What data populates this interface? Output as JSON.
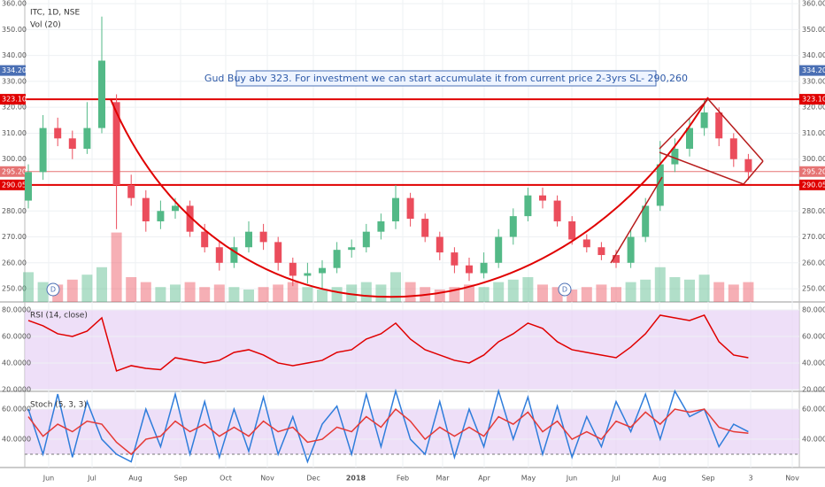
{
  "chart_data": [
    {
      "type": "candlestick",
      "title": "ITC, 1D, NSE",
      "open": [
        284,
        295,
        312,
        308,
        304,
        312,
        322,
        290,
        285,
        276,
        280,
        282,
        272,
        266,
        260,
        266,
        272,
        268,
        260,
        255,
        256,
        258,
        265,
        266,
        272,
        276,
        285,
        277,
        270,
        264,
        259,
        256,
        260,
        270,
        278,
        286,
        284,
        276,
        269,
        266,
        263,
        260,
        270,
        282,
        298,
        304,
        312,
        318,
        308,
        300
      ],
      "high": [
        298,
        317,
        316,
        311,
        322,
        355,
        325,
        294,
        288,
        284,
        285,
        284,
        275,
        268,
        270,
        276,
        275,
        270,
        262,
        260,
        261,
        268,
        269,
        275,
        279,
        290,
        287,
        279,
        272,
        266,
        262,
        264,
        273,
        281,
        289,
        289,
        286,
        278,
        271,
        268,
        265,
        273,
        285,
        307,
        308,
        316,
        323,
        320,
        310,
        302
      ],
      "low": [
        281,
        292,
        305,
        300,
        302,
        310,
        273,
        282,
        272,
        273,
        277,
        270,
        264,
        257,
        258,
        264,
        265,
        257,
        251,
        252,
        250,
        256,
        262,
        264,
        269,
        273,
        274,
        268,
        261,
        256,
        253,
        254,
        258,
        267,
        276,
        281,
        274,
        267,
        264,
        261,
        258,
        258,
        268,
        280,
        295,
        301,
        309,
        305,
        297,
        292
      ],
      "close": [
        295,
        312,
        308,
        304,
        312,
        338,
        290,
        285,
        276,
        280,
        282,
        272,
        266,
        260,
        266,
        272,
        268,
        260,
        255,
        256,
        258,
        265,
        266,
        272,
        276,
        285,
        277,
        270,
        264,
        259,
        256,
        260,
        270,
        278,
        286,
        284,
        276,
        269,
        266,
        263,
        260,
        270,
        282,
        298,
        304,
        312,
        318,
        308,
        300,
        295
      ],
      "up_color": "#53b987",
      "down_color": "#eb4d5c",
      "volume_title": "Vol (20)",
      "volume": [
        12,
        8,
        7,
        9,
        11,
        14,
        28,
        10,
        8,
        6,
        7,
        8,
        6,
        7,
        6,
        5,
        6,
        7,
        8,
        6,
        5,
        6,
        7,
        8,
        7,
        12,
        8,
        6,
        5,
        6,
        7,
        6,
        8,
        9,
        10,
        7,
        6,
        5,
        6,
        7,
        6,
        8,
        9,
        14,
        10,
        9,
        11,
        8,
        7,
        8
      ],
      "ylim": [
        244.9,
        361.4
      ],
      "yticks": [
        {
          "value": 250,
          "label": "250.00"
        },
        {
          "value": 260,
          "label": "260.00"
        },
        {
          "value": 270,
          "label": "270.00"
        },
        {
          "value": 280,
          "label": "280.00"
        },
        {
          "value": 290,
          "label": "290.00"
        },
        {
          "value": 300,
          "label": "300.00"
        },
        {
          "value": 310,
          "label": "310.00"
        },
        {
          "value": 320,
          "label": "320.00"
        },
        {
          "value": 330,
          "label": "330.00"
        },
        {
          "value": 340,
          "label": "340.00"
        },
        {
          "value": 350,
          "label": "350.00"
        },
        {
          "value": 360,
          "label": "360.00"
        }
      ],
      "levels": [
        {
          "value": 334.2,
          "label": "334.20",
          "color": "#4a6fb4",
          "line": false
        },
        {
          "value": 323.1,
          "label": "323.10",
          "color": "#e00000",
          "line": true
        },
        {
          "value": 295.2,
          "label": "295.20",
          "color": "#e57373",
          "line": true
        },
        {
          "value": 290.05,
          "label": "290.05",
          "color": "#e00000",
          "line": true
        }
      ],
      "annotation": "Gud Buy abv 323. For investment we can start accumulate it from current price 2-3yrs SL- 290,260",
      "markers": [
        "D",
        "D"
      ],
      "x_labels": [
        "Jun",
        "Jul",
        "Aug",
        "Sep",
        "Oct",
        "Nov",
        "Dec",
        "2018",
        "Feb",
        "Mar",
        "Apr",
        "May",
        "Jun",
        "Jul",
        "Aug",
        "Sep",
        "3",
        "Nov"
      ]
    },
    {
      "type": "line",
      "title": "RSI (14, close)",
      "color": "#e00000",
      "values": [
        72,
        68,
        62,
        60,
        64,
        74,
        34,
        38,
        36,
        35,
        44,
        42,
        40,
        42,
        48,
        50,
        46,
        40,
        38,
        40,
        42,
        48,
        50,
        58,
        62,
        70,
        58,
        50,
        46,
        42,
        40,
        46,
        56,
        62,
        70,
        66,
        56,
        50,
        48,
        46,
        44,
        52,
        62,
        76,
        74,
        72,
        76,
        56,
        46,
        44
      ],
      "ylim": [
        19.3,
        85.3
      ],
      "yticks": [
        {
          "value": 20,
          "label": "20.0000"
        },
        {
          "value": 40,
          "label": "40.0000"
        },
        {
          "value": 60,
          "label": "60.0000"
        },
        {
          "value": 80,
          "label": "80.0000"
        }
      ],
      "band": [
        20,
        80
      ]
    },
    {
      "type": "line",
      "title": "Stoch (5, 3, 3)",
      "series": [
        {
          "color": "#2f7ddb",
          "values": [
            60,
            30,
            70,
            28,
            65,
            40,
            30,
            25,
            60,
            35,
            70,
            30,
            65,
            28,
            60,
            32,
            68,
            30,
            55,
            25,
            50,
            62,
            30,
            70,
            35,
            72,
            40,
            30,
            65,
            28,
            60,
            35,
            72,
            40,
            68,
            30,
            62,
            28,
            55,
            35,
            65,
            45,
            70,
            40,
            72,
            55,
            60,
            35,
            50,
            45
          ]
        },
        {
          "color": "#e53935",
          "values": [
            55,
            42,
            50,
            45,
            52,
            50,
            38,
            30,
            40,
            42,
            52,
            45,
            50,
            42,
            48,
            42,
            52,
            45,
            48,
            38,
            40,
            48,
            45,
            55,
            48,
            60,
            52,
            40,
            48,
            42,
            48,
            42,
            55,
            50,
            58,
            45,
            52,
            40,
            45,
            40,
            52,
            48,
            58,
            50,
            60,
            58,
            60,
            48,
            45,
            44
          ]
        }
      ],
      "ylim": [
        21.8,
        71.2
      ],
      "yticks": [
        {
          "value": 40,
          "label": "40.0000"
        },
        {
          "value": 60,
          "label": "60.0000"
        }
      ],
      "band": [
        30,
        60
      ]
    }
  ]
}
